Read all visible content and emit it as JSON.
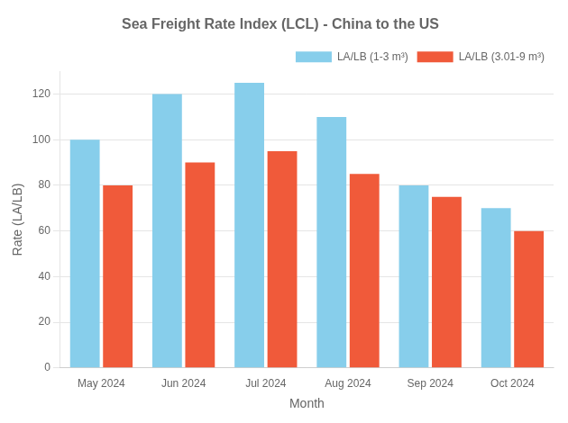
{
  "chart_data": {
    "type": "bar",
    "title": "Sea Freight Rate Index (LCL) - China to the US",
    "xlabel": "Month",
    "ylabel": "Rate (LA/LB)",
    "categories": [
      "May 2024",
      "Jun 2024",
      "Jul 2024",
      "Aug 2024",
      "Sep 2024",
      "Oct 2024"
    ],
    "series": [
      {
        "name": "LA/LB (1-3 m³)",
        "color": "#87CEEB",
        "values": [
          100,
          120,
          125,
          110,
          80,
          70
        ]
      },
      {
        "name": "LA/LB (3.01-9 m³)",
        "color": "#F05A3A",
        "values": [
          80,
          90,
          95,
          85,
          75,
          60
        ]
      }
    ],
    "ylim": [
      0,
      130
    ],
    "yticks": [
      0,
      20,
      40,
      60,
      80,
      100,
      120
    ],
    "grid": true,
    "legend": "upper right"
  }
}
